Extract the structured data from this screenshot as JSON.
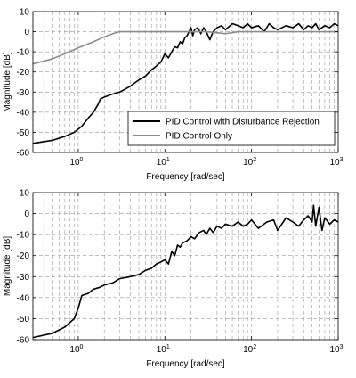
{
  "chart_data": [
    {
      "type": "line",
      "xscale": "log",
      "xlabel": "Frequency [rad/sec]",
      "ylabel": "Magnitude [dB]",
      "xlim": [
        0.3,
        1000
      ],
      "ylim": [
        -60,
        10
      ],
      "xticks": [
        {
          "v": 1,
          "label": "10",
          "sup": "0"
        },
        {
          "v": 10,
          "label": "10",
          "sup": "1"
        },
        {
          "v": 100,
          "label": "10",
          "sup": "2"
        },
        {
          "v": 1000,
          "label": "10",
          "sup": "3"
        }
      ],
      "yticks": [
        10,
        0,
        -10,
        -20,
        -30,
        -40,
        -50,
        -60
      ],
      "grid": true,
      "legend_position": "lower-right",
      "series": [
        {
          "name": "PID Control with Disturbance Rejection",
          "color": "#000000",
          "x": [
            0.3,
            0.5,
            0.7,
            0.9,
            1.1,
            1.3,
            1.5,
            1.7,
            1.8,
            2.0,
            2.5,
            3.0,
            3.5,
            4.0,
            5.0,
            6.0,
            7.0,
            8.0,
            9.0,
            10,
            11,
            12,
            13,
            14,
            15,
            16,
            17,
            18,
            19,
            20,
            21,
            22,
            24,
            26,
            28,
            30,
            33,
            36,
            40,
            45,
            50,
            60,
            70,
            80,
            90,
            100,
            120,
            140,
            160,
            180,
            200,
            250,
            300,
            350,
            400,
            450,
            500,
            550,
            600,
            700,
            800,
            900,
            1000
          ],
          "values": [
            -55.5,
            -54,
            -52,
            -50,
            -47,
            -43,
            -40,
            -36,
            -33.5,
            -32.5,
            -31,
            -30,
            -28.5,
            -27,
            -24,
            -22,
            -19,
            -17,
            -15,
            -11,
            -13,
            -10,
            -7.5,
            -8,
            -5,
            -6,
            -3,
            -2,
            0,
            2,
            -2,
            1,
            2,
            -1,
            2,
            0,
            -4,
            0,
            2,
            3,
            1,
            4,
            3,
            2,
            4,
            2,
            3,
            0,
            4,
            2,
            1,
            3,
            2,
            4,
            1,
            3,
            2,
            4,
            1,
            3,
            2,
            4,
            3
          ]
        },
        {
          "name": "PID Control Only",
          "color": "#8c8c8c",
          "x": [
            0.3,
            0.5,
            0.7,
            1.0,
            1.5,
            2.0,
            2.5,
            3.0,
            3.2,
            4,
            5,
            7,
            10,
            15,
            20,
            25,
            30,
            40,
            50,
            70,
            100,
            200,
            500,
            1000
          ],
          "values": [
            -16,
            -13.5,
            -11,
            -8,
            -5,
            -2.5,
            -1,
            0,
            0,
            0,
            0,
            0,
            0,
            0,
            0,
            0,
            0,
            -0.5,
            -1,
            0,
            0,
            0,
            0,
            0
          ]
        }
      ]
    },
    {
      "type": "line",
      "xscale": "log",
      "xlabel": "Frequency [rad/sec]",
      "ylabel": "Magnitude [dB]",
      "xlim": [
        0.3,
        1000
      ],
      "ylim": [
        -60,
        10
      ],
      "xticks": [
        {
          "v": 1,
          "label": "10",
          "sup": "0"
        },
        {
          "v": 10,
          "label": "10",
          "sup": "1"
        },
        {
          "v": 100,
          "label": "10",
          "sup": "2"
        },
        {
          "v": 1000,
          "label": "10",
          "sup": "3"
        }
      ],
      "yticks": [
        10,
        0,
        -10,
        -20,
        -30,
        -40,
        -50,
        -60
      ],
      "grid": true,
      "series": [
        {
          "color": "#000000",
          "x": [
            0.3,
            0.5,
            0.7,
            0.9,
            1.0,
            1.1,
            1.3,
            1.5,
            1.8,
            2.0,
            2.5,
            3.0,
            4.0,
            5.0,
            6.0,
            7.0,
            8.0,
            9.0,
            10,
            11,
            12,
            13,
            14,
            15,
            16,
            18,
            20,
            22,
            25,
            28,
            30,
            33,
            36,
            40,
            45,
            50,
            60,
            70,
            80,
            90,
            100,
            120,
            150,
            180,
            200,
            250,
            300,
            350,
            400,
            450,
            500,
            520,
            550,
            600,
            650,
            700,
            800,
            900,
            1000
          ],
          "values": [
            -59,
            -57,
            -54,
            -50,
            -45,
            -39,
            -38,
            -36,
            -35,
            -34,
            -33,
            -31,
            -30,
            -29,
            -27,
            -26,
            -24,
            -23,
            -22,
            -24,
            -18,
            -20,
            -15,
            -16,
            -14,
            -13,
            -11,
            -12,
            -9,
            -8,
            -10,
            -7,
            -9,
            -6,
            -7,
            -5,
            -6,
            -4,
            -6,
            -5,
            -3,
            -7,
            -4,
            -3,
            -8,
            -2,
            -4,
            -6,
            -3,
            -1,
            -4,
            4,
            -6,
            3,
            -8,
            -2,
            -5,
            -3,
            -4
          ]
        }
      ]
    }
  ]
}
